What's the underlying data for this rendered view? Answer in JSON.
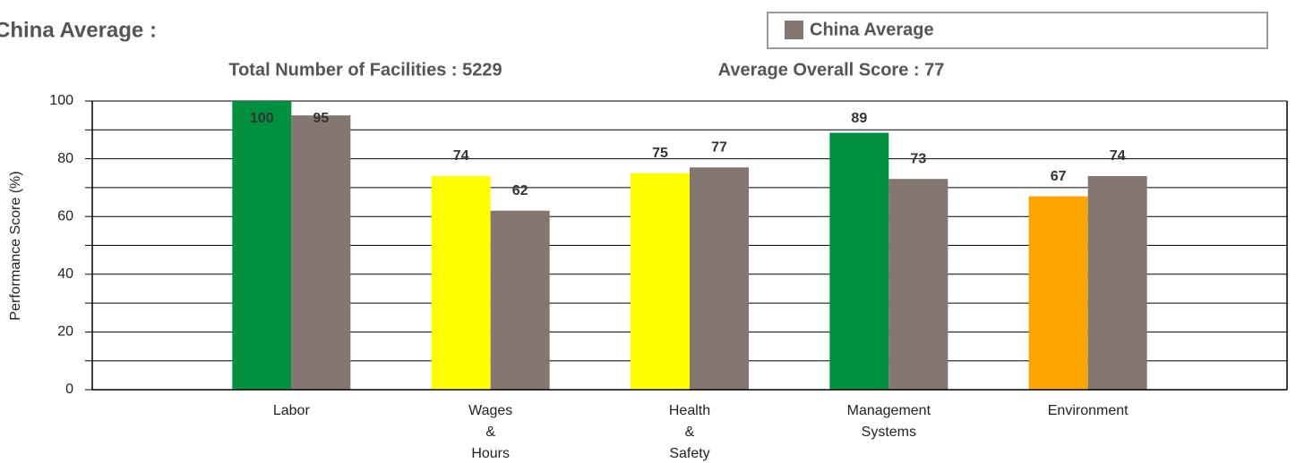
{
  "chart_data": {
    "type": "bar",
    "title": "China Average :",
    "subtitles": [
      "Total Number of Facilities : 5229",
      "Average Overall Score : 77"
    ],
    "y_label": "Performance Score (%)",
    "categories": [
      [
        "Labor"
      ],
      [
        "Wages",
        "&",
        "Hours"
      ],
      [
        "Health",
        "&",
        "Safety"
      ],
      [
        "Management",
        "Systems"
      ],
      [
        "Environment"
      ]
    ],
    "series": [
      {
        "colors": [
          "#009140",
          "#ffff00",
          "#ffff00",
          "#009140",
          "#ffa500"
        ],
        "values": [
          100,
          74,
          75,
          89,
          67
        ]
      },
      {
        "name": "China Average",
        "color": "#847670",
        "values": [
          95,
          62,
          77,
          73,
          74
        ]
      }
    ],
    "ylim": [
      0,
      100
    ],
    "yticks": [
      0,
      20,
      40,
      60,
      80,
      100
    ],
    "minor_yticks": [
      10,
      30,
      50,
      70,
      90
    ],
    "grid": true,
    "legend": "top-right"
  }
}
